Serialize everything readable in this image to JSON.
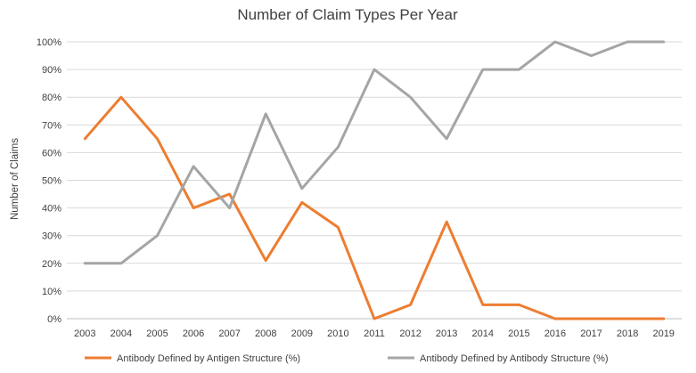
{
  "chart_data": {
    "type": "line",
    "title": "Number of Claim Types Per Year",
    "xlabel": "",
    "ylabel": "Number of Claims",
    "x": [
      "2003",
      "2004",
      "2005",
      "2006",
      "2007",
      "2008",
      "2009",
      "2010",
      "2011",
      "2012",
      "2013",
      "2014",
      "2015",
      "2016",
      "2017",
      "2018",
      "2019"
    ],
    "ylim": [
      0,
      100
    ],
    "yticks": [
      0,
      10,
      20,
      30,
      40,
      50,
      60,
      70,
      80,
      90,
      100
    ],
    "ytick_labels": [
      "0%",
      "10%",
      "20%",
      "30%",
      "40%",
      "50%",
      "60%",
      "70%",
      "80%",
      "90%",
      "100%"
    ],
    "grid": true,
    "legend_position": "bottom",
    "series": [
      {
        "name": "Antibody Defined by Antigen Structure (%)",
        "color": "#ED7D31",
        "values": [
          65,
          80,
          65,
          40,
          45,
          21,
          42,
          33,
          0,
          5,
          35,
          5,
          5,
          0,
          0,
          0,
          0
        ]
      },
      {
        "name": "Antibody Defined by Antibody Structure (%)",
        "color": "#A5A5A5",
        "values": [
          20,
          20,
          30,
          55,
          40,
          74,
          47,
          62,
          90,
          80,
          65,
          90,
          90,
          100,
          95,
          100,
          100
        ]
      }
    ]
  }
}
